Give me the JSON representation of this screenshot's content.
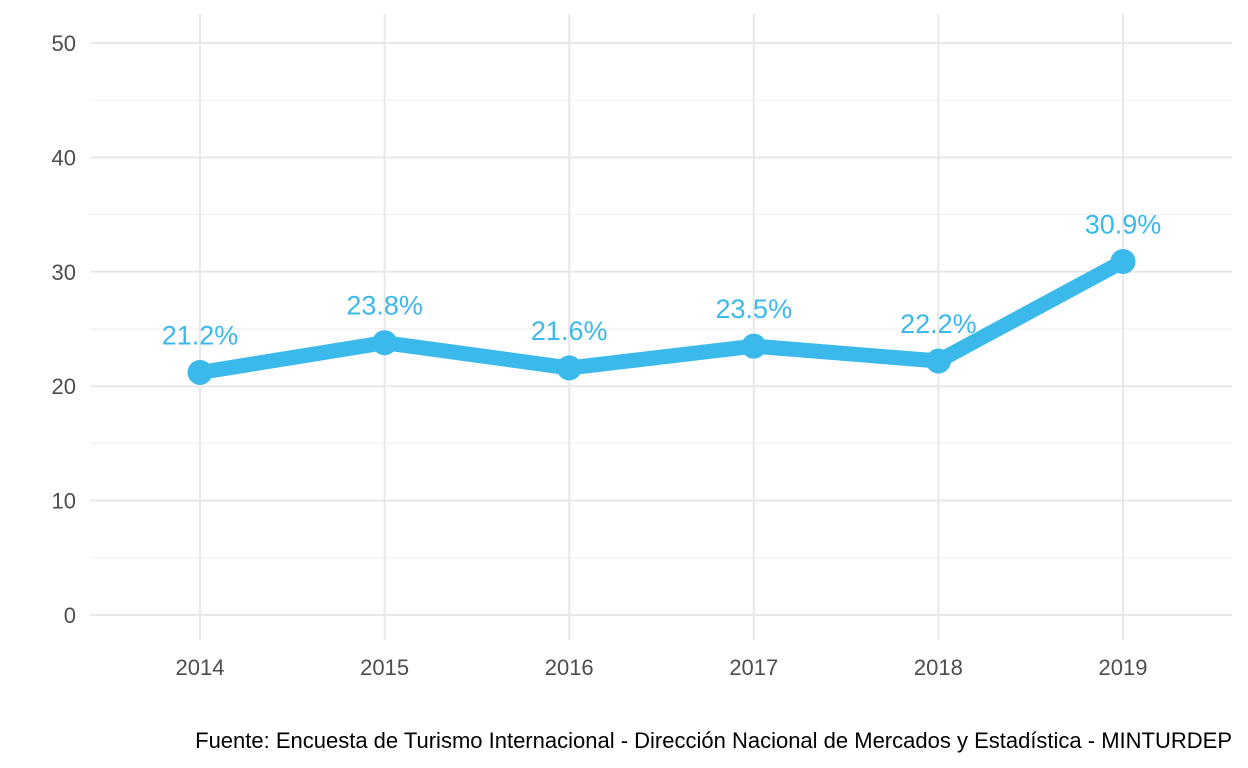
{
  "chart_data": {
    "type": "line",
    "title": "",
    "xlabel": "",
    "ylabel": "",
    "categories": [
      "2014",
      "2015",
      "2016",
      "2017",
      "2018",
      "2019"
    ],
    "series": [
      {
        "values": [
          21.2,
          23.8,
          21.6,
          23.5,
          22.2,
          30.9
        ],
        "labels": [
          "21.2%",
          "23.8%",
          "21.6%",
          "23.5%",
          "22.2%",
          "30.9%"
        ],
        "color": "#3bb9ea"
      }
    ],
    "y_ticks": [
      "0",
      "10",
      "20",
      "30",
      "40",
      "50"
    ],
    "ylim": [
      0,
      50
    ],
    "grid": true,
    "legend": "none",
    "caption": "Fuente: Encuesta de Turismo Internacional - Dirección Nacional de Mercados y Estadística - MINTURDEP"
  }
}
